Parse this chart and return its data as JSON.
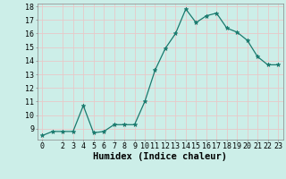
{
  "x": [
    0,
    1,
    2,
    3,
    4,
    5,
    6,
    7,
    8,
    9,
    10,
    11,
    12,
    13,
    14,
    15,
    16,
    17,
    18,
    19,
    20,
    21,
    22,
    23
  ],
  "y": [
    8.5,
    8.8,
    8.8,
    8.8,
    10.7,
    8.7,
    8.8,
    9.3,
    9.3,
    9.3,
    11.0,
    13.3,
    14.9,
    16.0,
    17.8,
    16.8,
    17.3,
    17.5,
    16.4,
    16.1,
    15.5,
    14.3,
    13.7,
    13.7
  ],
  "line_color": "#1a7a6e",
  "bg_color": "#cceee8",
  "grid_color": "#e8c8c8",
  "xlabel": "Humidex (Indice chaleur)",
  "xlim": [
    -0.5,
    23.5
  ],
  "ylim": [
    8.2,
    18.2
  ],
  "yticks": [
    9,
    10,
    11,
    12,
    13,
    14,
    15,
    16,
    17,
    18
  ],
  "xticks": [
    0,
    2,
    3,
    4,
    5,
    6,
    7,
    8,
    9,
    10,
    11,
    12,
    13,
    14,
    15,
    16,
    17,
    18,
    19,
    20,
    21,
    22,
    23
  ],
  "xlabel_fontsize": 7.5,
  "tick_fontsize": 6.0,
  "line_width": 0.9,
  "marker_size": 3.5
}
